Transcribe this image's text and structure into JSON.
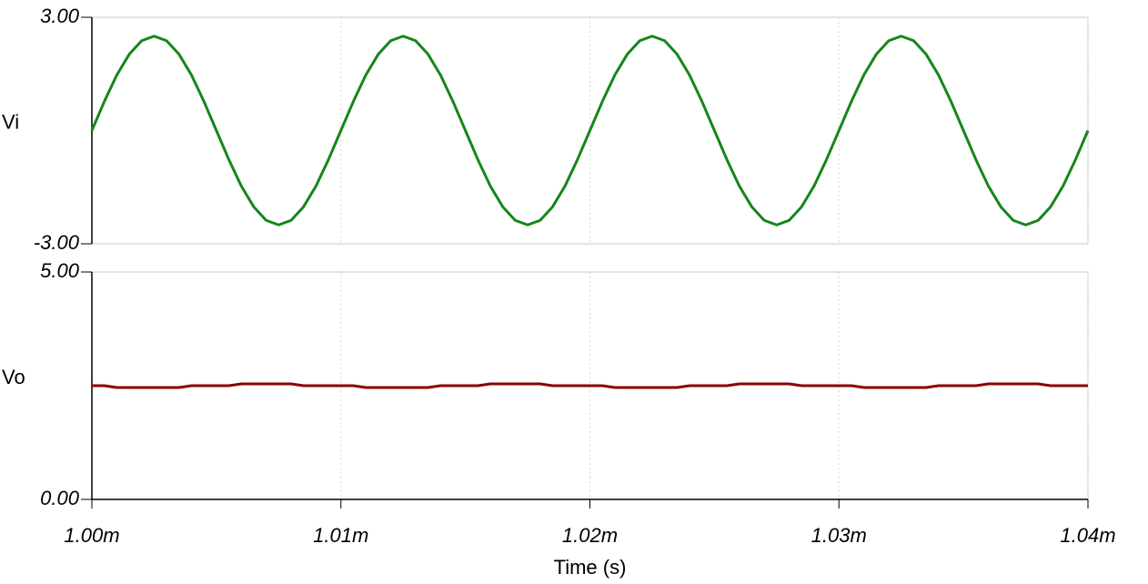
{
  "chart_data": [
    {
      "type": "line",
      "ylabel": "Vi",
      "ylabel_color": "#000000",
      "x": [
        0.001,
        0.0010005,
        0.001001,
        0.0010015,
        0.001002,
        0.0010025,
        0.001003,
        0.0010035,
        0.001004,
        0.0010045,
        0.001005,
        0.0010055,
        0.001006,
        0.0010065,
        0.001007,
        0.0010075,
        0.001008,
        0.0010085,
        0.001009,
        0.0010095,
        0.00101,
        0.0010105,
        0.001011,
        0.0010115,
        0.001012,
        0.0010125,
        0.001013,
        0.0010135,
        0.001014,
        0.0010145,
        0.001015,
        0.0010155,
        0.001016,
        0.0010165,
        0.001017,
        0.0010175,
        0.001018,
        0.0010185,
        0.001019,
        0.0010195,
        0.00102,
        0.0010205,
        0.001021,
        0.0010215,
        0.001022,
        0.0010225,
        0.001023,
        0.0010235,
        0.001024,
        0.0010245,
        0.001025,
        0.0010255,
        0.001026,
        0.0010265,
        0.001027,
        0.0010275,
        0.001028,
        0.0010285,
        0.001029,
        0.0010295,
        0.00103,
        0.0010305,
        0.001031,
        0.0010315,
        0.001032,
        0.0010325,
        0.001033,
        0.0010335,
        0.001034,
        0.0010345,
        0.001035,
        0.0010355,
        0.001036,
        0.0010365,
        0.001037,
        0.0010375,
        0.001038,
        0.0010385,
        0.001039,
        0.0010395,
        0.00104
      ],
      "series": [
        {
          "color": "#15861a",
          "values": [
            0,
            0.77,
            1.47,
            2.02,
            2.38,
            2.5,
            2.38,
            2.02,
            1.47,
            0.77,
            0,
            -0.77,
            -1.47,
            -2.02,
            -2.38,
            -2.5,
            -2.38,
            -2.02,
            -1.47,
            -0.77,
            0,
            0.77,
            1.47,
            2.02,
            2.38,
            2.5,
            2.38,
            2.02,
            1.47,
            0.77,
            0,
            -0.77,
            -1.47,
            -2.02,
            -2.38,
            -2.5,
            -2.38,
            -2.02,
            -1.47,
            -0.77,
            0,
            0.77,
            1.47,
            2.02,
            2.38,
            2.5,
            2.38,
            2.02,
            1.47,
            0.77,
            0,
            -0.77,
            -1.47,
            -2.02,
            -2.38,
            -2.5,
            -2.38,
            -2.02,
            -1.47,
            -0.77,
            0,
            0.77,
            1.47,
            2.02,
            2.38,
            2.5,
            2.38,
            2.02,
            1.47,
            0.77,
            0,
            -0.77,
            -1.47,
            -2.02,
            -2.38,
            -2.5,
            -2.38,
            -2.02,
            -1.47,
            -0.77,
            0
          ]
        }
      ],
      "xlim": [
        0.001,
        0.00104
      ],
      "xticks": [
        0.001,
        0.00101,
        0.00102,
        0.00103,
        0.00104
      ],
      "ylim": [
        -3,
        3
      ],
      "yticks": [
        {
          "value": -3,
          "label": "-3.00"
        },
        {
          "value": 3,
          "label": "3.00"
        }
      ],
      "grid": true
    },
    {
      "type": "line",
      "ylabel": "Vo",
      "ylabel_color": "#8b0000",
      "xlabel": "Time (s)",
      "x": [
        0.001,
        0.0010005,
        0.001001,
        0.0010015,
        0.001002,
        0.0010025,
        0.001003,
        0.0010035,
        0.001004,
        0.0010045,
        0.001005,
        0.0010055,
        0.001006,
        0.0010065,
        0.001007,
        0.0010075,
        0.001008,
        0.0010085,
        0.001009,
        0.0010095,
        0.00101,
        0.0010105,
        0.001011,
        0.0010115,
        0.001012,
        0.0010125,
        0.001013,
        0.0010135,
        0.001014,
        0.0010145,
        0.001015,
        0.0010155,
        0.001016,
        0.0010165,
        0.001017,
        0.0010175,
        0.001018,
        0.0010185,
        0.001019,
        0.0010195,
        0.00102,
        0.0010205,
        0.001021,
        0.0010215,
        0.001022,
        0.0010225,
        0.001023,
        0.0010235,
        0.001024,
        0.0010245,
        0.001025,
        0.0010255,
        0.001026,
        0.0010265,
        0.001027,
        0.0010275,
        0.001028,
        0.0010285,
        0.001029,
        0.0010295,
        0.00103,
        0.0010305,
        0.001031,
        0.0010315,
        0.001032,
        0.0010325,
        0.001033,
        0.0010335,
        0.001034,
        0.0010345,
        0.001035,
        0.0010355,
        0.001036,
        0.0010365,
        0.001037,
        0.0010375,
        0.001038,
        0.0010385,
        0.001039,
        0.0010395,
        0.00104
      ],
      "series": [
        {
          "color": "#8b0000",
          "values": [
            2.5,
            2.5,
            2.46,
            2.46,
            2.46,
            2.46,
            2.46,
            2.46,
            2.5,
            2.5,
            2.5,
            2.5,
            2.54,
            2.54,
            2.54,
            2.54,
            2.54,
            2.5,
            2.5,
            2.5,
            2.5,
            2.5,
            2.46,
            2.46,
            2.46,
            2.46,
            2.46,
            2.46,
            2.5,
            2.5,
            2.5,
            2.5,
            2.54,
            2.54,
            2.54,
            2.54,
            2.54,
            2.5,
            2.5,
            2.5,
            2.5,
            2.5,
            2.46,
            2.46,
            2.46,
            2.46,
            2.46,
            2.46,
            2.5,
            2.5,
            2.5,
            2.5,
            2.54,
            2.54,
            2.54,
            2.54,
            2.54,
            2.5,
            2.5,
            2.5,
            2.5,
            2.5,
            2.46,
            2.46,
            2.46,
            2.46,
            2.46,
            2.46,
            2.5,
            2.5,
            2.5,
            2.5,
            2.54,
            2.54,
            2.54,
            2.54,
            2.54,
            2.5,
            2.5,
            2.5,
            2.5
          ]
        }
      ],
      "xlim": [
        0.001,
        0.00104
      ],
      "xticks": [
        {
          "value": 0.001,
          "label": "1.00m"
        },
        {
          "value": 0.00101,
          "label": "1.01m"
        },
        {
          "value": 0.00102,
          "label": "1.02m"
        },
        {
          "value": 0.00103,
          "label": "1.03m"
        },
        {
          "value": 0.00104,
          "label": "1.04m"
        }
      ],
      "ylim": [
        0,
        5
      ],
      "yticks": [
        {
          "value": 0,
          "label": "0.00"
        },
        {
          "value": 5,
          "label": "5.00"
        }
      ],
      "grid": true
    }
  ]
}
